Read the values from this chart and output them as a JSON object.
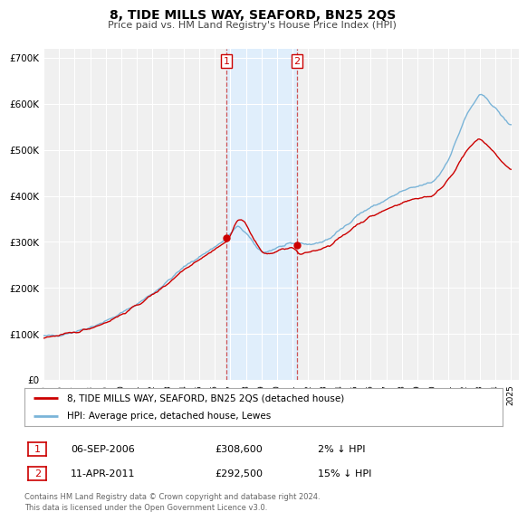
{
  "title": "8, TIDE MILLS WAY, SEAFORD, BN25 2QS",
  "subtitle": "Price paid vs. HM Land Registry's House Price Index (HPI)",
  "ylabel_ticks": [
    "£0",
    "£100K",
    "£200K",
    "£300K",
    "£400K",
    "£500K",
    "£600K",
    "£700K"
  ],
  "ylim": [
    0,
    720000
  ],
  "xlim_start": 1995,
  "xlim_end": 2025.5,
  "purchase1_date": 2006.75,
  "purchase1_price": 308600,
  "purchase2_date": 2011.27,
  "purchase2_price": 292500,
  "legend_line1": "8, TIDE MILLS WAY, SEAFORD, BN25 2QS (detached house)",
  "legend_line2": "HPI: Average price, detached house, Lewes",
  "footer": "Contains HM Land Registry data © Crown copyright and database right 2024.\nThis data is licensed under the Open Government Licence v3.0.",
  "hpi_color": "#7ab4d8",
  "price_color": "#cc0000",
  "shading_color": "#ddeeff",
  "marker_color": "#cc0000",
  "chart_bg": "#f0f0f0",
  "grid_color": "#ffffff"
}
